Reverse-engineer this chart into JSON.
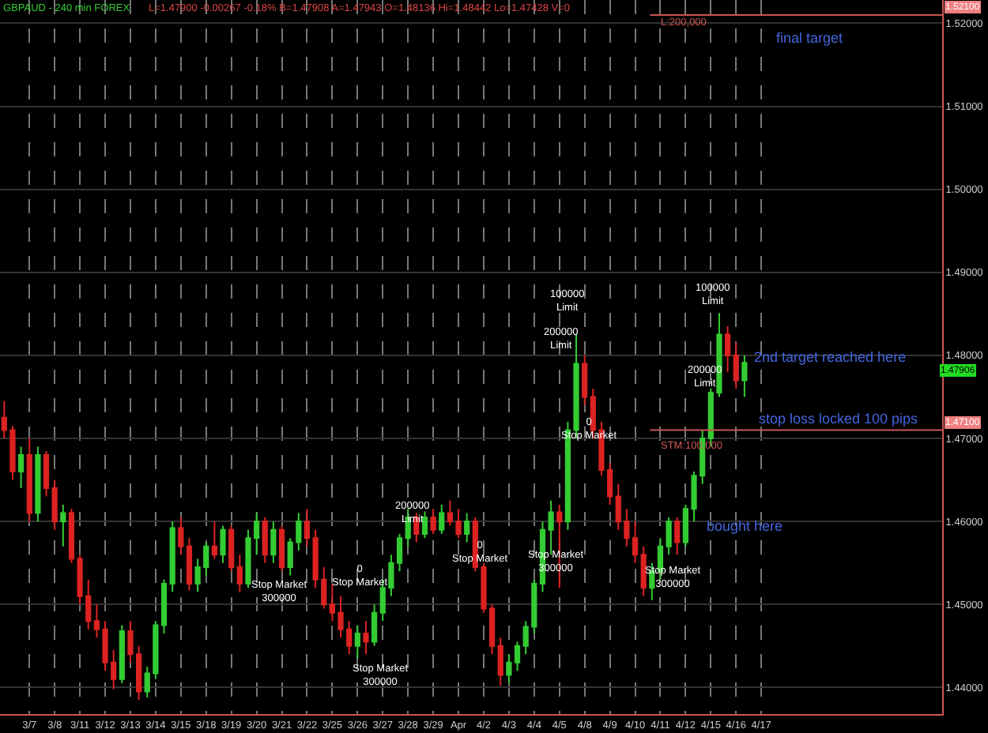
{
  "chart_data": {
    "type": "candlestick",
    "title": "GBPAUD - 240 min FOREX",
    "subtitle": "L=1.47900 -0.00267 -0.18% B=1.47908 A=1.47943 O=1.48136 Hi=1.48442 Lo=1.47428 V=0",
    "categories": [
      null,
      null,
      null,
      "3/7",
      null,
      null,
      "3/8",
      null,
      null,
      "3/11",
      null,
      null,
      "3/12",
      null,
      null,
      "3/13",
      null,
      null,
      "3/14",
      null,
      null,
      "3/15",
      null,
      null,
      "3/18",
      null,
      null,
      "3/19",
      null,
      null,
      "3/20",
      null,
      null,
      "3/21",
      null,
      null,
      "3/22",
      null,
      null,
      "3/25",
      null,
      null,
      "3/26",
      null,
      null,
      "3/27",
      null,
      null,
      "3/28",
      null,
      null,
      "3/29",
      null,
      null,
      "Apr",
      null,
      null,
      "4/2",
      null,
      null,
      "4/3",
      null,
      null,
      "4/4",
      null,
      null,
      "4/5",
      null,
      null,
      "4/8",
      null,
      null,
      "4/9",
      null,
      null,
      "4/10",
      null,
      null,
      "4/11",
      null,
      null,
      "4/12",
      null,
      null,
      "4/15",
      null,
      null,
      "4/16",
      null,
      null,
      "4/17",
      null,
      null,
      null,
      null,
      null,
      null,
      null,
      null,
      null,
      null,
      null,
      null,
      null,
      null,
      null,
      null,
      null,
      null,
      null,
      null,
      null
    ],
    "ohlc": [
      [
        1.4725,
        1.4745,
        1.47,
        1.471
      ],
      [
        1.471,
        1.4715,
        1.465,
        1.466
      ],
      [
        1.466,
        1.469,
        1.464,
        1.468
      ],
      [
        1.468,
        1.47,
        1.46,
        1.461
      ],
      [
        1.461,
        1.469,
        1.46,
        1.468
      ],
      [
        1.468,
        1.4685,
        1.463,
        1.464
      ],
      [
        1.464,
        1.465,
        1.459,
        1.46
      ],
      [
        1.46,
        1.462,
        1.457,
        1.461
      ],
      [
        1.461,
        1.4615,
        1.455,
        1.4555
      ],
      [
        1.4555,
        1.456,
        1.45,
        1.451
      ],
      [
        1.451,
        1.453,
        1.447,
        1.448
      ],
      [
        1.448,
        1.45,
        1.446,
        1.447
      ],
      [
        1.447,
        1.448,
        1.442,
        1.443
      ],
      [
        1.443,
        1.4445,
        1.4398,
        1.441
      ],
      [
        1.441,
        1.4475,
        1.4405,
        1.4468
      ],
      [
        1.4468,
        1.448,
        1.443,
        1.444
      ],
      [
        1.444,
        1.445,
        1.4385,
        1.4395
      ],
      [
        1.4395,
        1.4425,
        1.4388,
        1.4417
      ],
      [
        1.4417,
        1.448,
        1.441,
        1.4475
      ],
      [
        1.4475,
        1.453,
        1.4465,
        1.4525
      ],
      [
        1.4525,
        1.46,
        1.4515,
        1.4592
      ],
      [
        1.4592,
        1.4605,
        1.456,
        1.457
      ],
      [
        1.457,
        1.458,
        1.4517,
        1.4525
      ],
      [
        1.4525,
        1.4555,
        1.4515,
        1.4545
      ],
      [
        1.4545,
        1.4575,
        1.4535,
        1.457
      ],
      [
        1.457,
        1.46,
        1.4555,
        1.456
      ],
      [
        1.456,
        1.4595,
        1.455,
        1.459
      ],
      [
        1.459,
        1.4595,
        1.454,
        1.4545
      ],
      [
        1.4545,
        1.456,
        1.4515,
        1.4525
      ],
      [
        1.4525,
        1.459,
        1.452,
        1.458
      ],
      [
        1.458,
        1.461,
        1.456,
        1.46
      ],
      [
        1.46,
        1.4605,
        1.455,
        1.456
      ],
      [
        1.456,
        1.46,
        1.455,
        1.459
      ],
      [
        1.459,
        1.4595,
        1.454,
        1.4545
      ],
      [
        1.4545,
        1.458,
        1.4535,
        1.4575
      ],
      [
        1.4575,
        1.461,
        1.4565,
        1.46
      ],
      [
        1.46,
        1.4615,
        1.457,
        1.458
      ],
      [
        1.458,
        1.459,
        1.452,
        1.453
      ],
      [
        1.453,
        1.4545,
        1.4495,
        1.45
      ],
      [
        1.45,
        1.4525,
        1.448,
        1.449
      ],
      [
        1.449,
        1.451,
        1.446,
        1.447
      ],
      [
        1.447,
        1.448,
        1.444,
        1.445
      ],
      [
        1.445,
        1.4475,
        1.4435,
        1.4465
      ],
      [
        1.4465,
        1.448,
        1.444,
        1.4455
      ],
      [
        1.4455,
        1.45,
        1.445,
        1.449
      ],
      [
        1.449,
        1.453,
        1.448,
        1.452
      ],
      [
        1.452,
        1.456,
        1.451,
        1.455
      ],
      [
        1.455,
        1.4585,
        1.454,
        1.458
      ],
      [
        1.458,
        1.4615,
        1.457,
        1.4605
      ],
      [
        1.4605,
        1.461,
        1.4575,
        1.4585
      ],
      [
        1.4585,
        1.4612,
        1.458,
        1.4605
      ],
      [
        1.4605,
        1.4615,
        1.4585,
        1.459
      ],
      [
        1.459,
        1.462,
        1.4585,
        1.461
      ],
      [
        1.461,
        1.4625,
        1.4595,
        1.46
      ],
      [
        1.46,
        1.4615,
        1.458,
        1.4585
      ],
      [
        1.4585,
        1.461,
        1.4575,
        1.46
      ],
      [
        1.46,
        1.4605,
        1.454,
        1.4545
      ],
      [
        1.4545,
        1.455,
        1.449,
        1.4495
      ],
      [
        1.4495,
        1.45,
        1.444,
        1.445
      ],
      [
        1.445,
        1.446,
        1.4402,
        1.4415
      ],
      [
        1.4415,
        1.444,
        1.4405,
        1.443
      ],
      [
        1.443,
        1.4455,
        1.442,
        1.445
      ],
      [
        1.445,
        1.448,
        1.444,
        1.4473
      ],
      [
        1.4473,
        1.453,
        1.4465,
        1.4525
      ],
      [
        1.4525,
        1.46,
        1.4515,
        1.459
      ],
      [
        1.459,
        1.4625,
        1.456,
        1.4611
      ],
      [
        1.4611,
        1.462,
        1.452,
        1.46
      ],
      [
        1.46,
        1.472,
        1.459,
        1.471
      ],
      [
        1.471,
        1.4825,
        1.47,
        1.479
      ],
      [
        1.479,
        1.48,
        1.474,
        1.475
      ],
      [
        1.475,
        1.476,
        1.47,
        1.471
      ],
      [
        1.471,
        1.472,
        1.4655,
        1.4662
      ],
      [
        1.4662,
        1.467,
        1.462,
        1.463
      ],
      [
        1.463,
        1.4645,
        1.459,
        1.46
      ],
      [
        1.46,
        1.4615,
        1.457,
        1.458
      ],
      [
        1.458,
        1.46,
        1.455,
        1.456
      ],
      [
        1.456,
        1.457,
        1.451,
        1.452
      ],
      [
        1.452,
        1.455,
        1.4505,
        1.454
      ],
      [
        1.454,
        1.458,
        1.453,
        1.457
      ],
      [
        1.457,
        1.4605,
        1.456,
        1.46
      ],
      [
        1.46,
        1.4605,
        1.456,
        1.4575
      ],
      [
        1.4575,
        1.462,
        1.457,
        1.4615
      ],
      [
        1.4615,
        1.466,
        1.46,
        1.4655
      ],
      [
        1.4655,
        1.471,
        1.4645,
        1.47
      ],
      [
        1.47,
        1.476,
        1.469,
        1.4755
      ],
      [
        1.4755,
        1.4851,
        1.475,
        1.4825
      ],
      [
        1.4825,
        1.4835,
        1.478,
        1.48
      ],
      [
        1.48,
        1.4815,
        1.476,
        1.477
      ],
      [
        1.477,
        1.48,
        1.475,
        1.4791
      ],
      null,
      null,
      null,
      null,
      null,
      null,
      null,
      null,
      null,
      null,
      null,
      null,
      null,
      null,
      null,
      null,
      null,
      null,
      null,
      null,
      null,
      null,
      null
    ],
    "colors": [
      "#dd2222",
      "#dd2222",
      "#33cc33",
      "#dd2222",
      "#33cc33",
      "#dd2222",
      "#dd2222",
      "#33cc33",
      "#dd2222",
      "#dd2222",
      "#dd2222",
      "#dd2222",
      "#dd2222",
      "#dd2222",
      "#33cc33",
      "#dd2222",
      "#dd2222",
      "#33cc33",
      "#33cc33",
      "#33cc33",
      "#33cc33",
      "#dd2222",
      "#dd2222",
      "#33cc33",
      "#33cc33",
      "#dd2222",
      "#33cc33",
      "#dd2222",
      "#dd2222",
      "#33cc33",
      "#33cc33",
      "#dd2222",
      "#33cc33",
      "#dd2222",
      "#33cc33",
      "#33cc33",
      "#dd2222",
      "#dd2222",
      "#dd2222",
      "#dd2222",
      "#dd2222",
      "#dd2222",
      "#33cc33",
      "#dd2222",
      "#33cc33",
      "#33cc33",
      "#33cc33",
      "#33cc33",
      "#33cc33",
      "#dd2222",
      "#33cc33",
      "#dd2222",
      "#33cc33",
      "#dd2222",
      "#dd2222",
      "#33cc33",
      "#dd2222",
      "#dd2222",
      "#dd2222",
      "#dd2222",
      "#33cc33",
      "#33cc33",
      "#33cc33",
      "#33cc33",
      "#33cc33",
      "#33cc33",
      "#dd2222",
      "#33cc33",
      "#33cc33",
      "#dd2222",
      "#dd2222",
      "#dd2222",
      "#dd2222",
      "#dd2222",
      "#dd2222",
      "#dd2222",
      "#dd2222",
      "#33cc33",
      "#33cc33",
      "#33cc33",
      "#dd2222",
      "#33cc33",
      "#33cc33",
      "#33cc33",
      "#33cc33",
      "#33cc33",
      "#dd2222",
      "#dd2222",
      "#33cc33",
      null,
      null,
      null,
      null,
      null,
      null,
      null,
      null,
      null,
      null,
      null,
      null,
      null,
      null,
      null,
      null,
      null,
      null,
      null,
      null,
      null,
      null,
      null
    ],
    "ylim": [
      1.4368,
      1.5228
    ],
    "yticks": [
      {
        "value": 1.44,
        "label": "1.44000"
      },
      {
        "value": 1.45,
        "label": "1.45000"
      },
      {
        "value": 1.46,
        "label": "1.46000"
      },
      {
        "value": 1.47,
        "label": "1.47000"
      },
      {
        "value": 1.48,
        "label": "1.48000"
      },
      {
        "value": 1.49,
        "label": "1.49000"
      },
      {
        "value": 1.5,
        "label": "1.50000"
      },
      {
        "value": 1.51,
        "label": "1.51000"
      },
      {
        "value": 1.52,
        "label": "1.52000"
      }
    ],
    "grid": true,
    "ref_lines": [
      {
        "axis": "y",
        "value": 1.521,
        "label": "1.52100",
        "color": "#cc5555"
      },
      {
        "axis": "y",
        "value": 1.471,
        "label": "1.47100",
        "color": "#cc5555"
      }
    ],
    "annotations": [
      "final target",
      "2nd target reached here",
      "stop loss locked 100 pips",
      "bought here",
      "Stop Market\n300000",
      "0\nStop Market",
      "Stop Market\n300000",
      "200000\nLimit",
      "0\nStop Market",
      "100000\nLimit",
      "200000\nLimit",
      "0\nStop Market",
      "Stop Market\n300000",
      "Stop Market\n300000",
      "200000\nLimit",
      "100000\nLimit",
      "1.47906",
      "L:200,000",
      "STM:100,000"
    ]
  }
}
